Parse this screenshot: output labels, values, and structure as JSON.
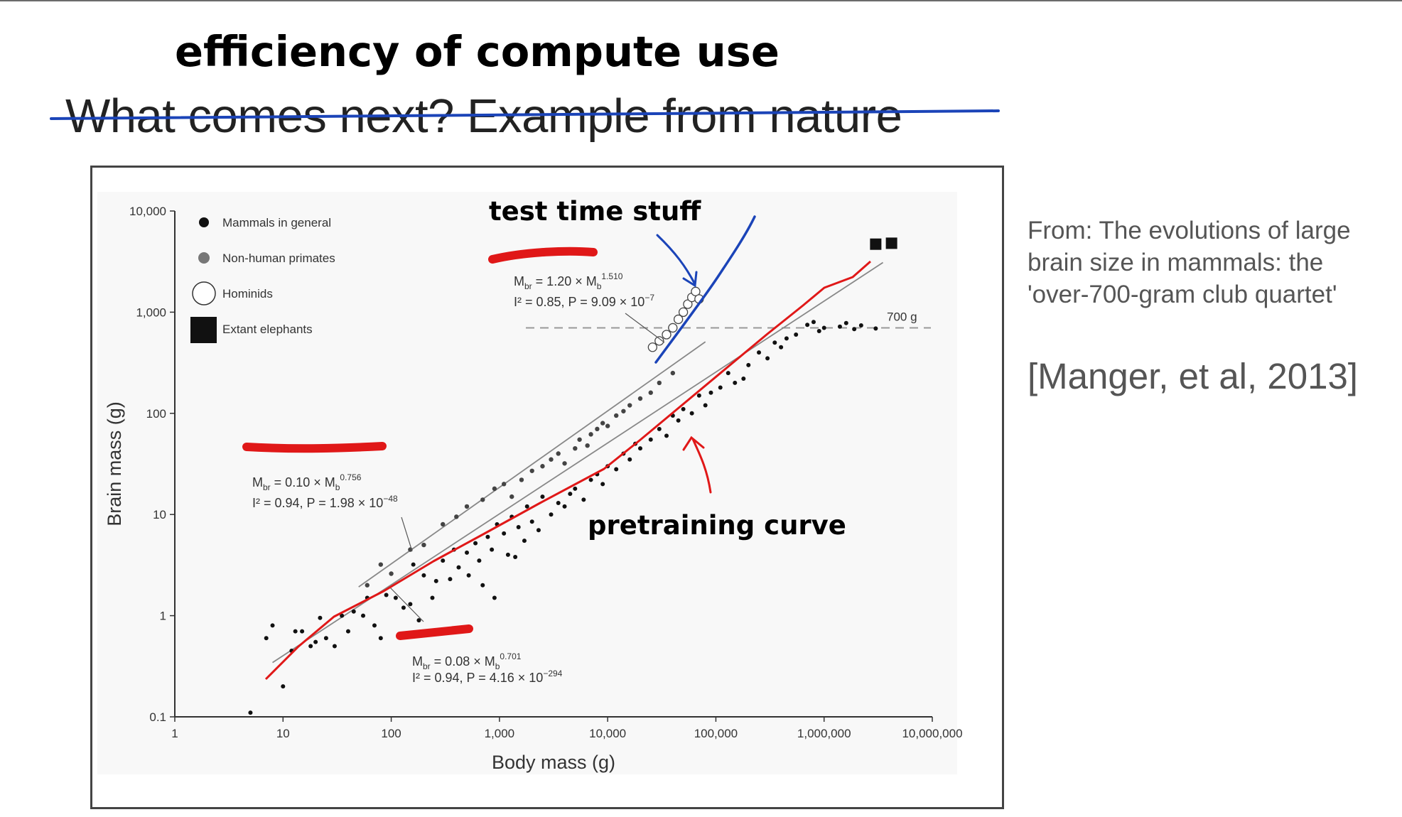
{
  "slide": {
    "title_handwritten": "efficiency of compute use",
    "title_original": "What comes next?  Example from nature",
    "source_text": "From: The evolutions of large brain size in mammals: the 'over-700-gram club quartet'",
    "citation": "[Manger, et al, 2013]"
  },
  "annotations": {
    "test_time": "test time stuff",
    "pretraining": "pretraining curve"
  },
  "colors": {
    "ink_blue": "#1b44b8",
    "ink_red": "#e01818",
    "points": "#111111",
    "fit_line": "#888888"
  },
  "chart_data": {
    "type": "scatter",
    "xlabel": "Body mass (g)",
    "ylabel": "Brain mass (g)",
    "xscale": "log",
    "yscale": "log",
    "xlim": [
      1,
      10000000
    ],
    "ylim": [
      0.1,
      10000
    ],
    "xticks": [
      "1",
      "10",
      "100",
      "1,000",
      "10,000",
      "100,000",
      "1,000,000",
      "10,000,000"
    ],
    "yticks": [
      "0.1",
      "1",
      "10",
      "100",
      "1,000",
      "10,000"
    ],
    "legend": {
      "placement": "top-left",
      "entries": [
        "Mammals in general",
        "Non-human primates",
        "Hominids",
        "Extant elephants"
      ]
    },
    "reference_line": {
      "y": 700,
      "label": "700 g"
    },
    "fits": [
      {
        "group": "Hominids",
        "eq": "M",
        "eq_sub": "br",
        "eq_mid": " = 1.20 × M",
        "eq_sub2": "b",
        "eq_exp": "1.510",
        "stat": "I² = 0.85, P = 9.09 × 10",
        "stat_exp": "−7",
        "a": 1.2,
        "b": 1.51,
        "x_range": [
          25000,
          80000
        ]
      },
      {
        "group": "Non-human primates",
        "eq": "M",
        "eq_sub": "br",
        "eq_mid": " = 0.10 × M",
        "eq_sub2": "b",
        "eq_exp": "0.756",
        "stat": "I² = 0.94, P = 1.98 × 10",
        "stat_exp": "−48",
        "a": 0.1,
        "b": 0.756,
        "x_range": [
          50,
          80000
        ]
      },
      {
        "group": "Mammals in general",
        "eq": "M",
        "eq_sub": "br",
        "eq_mid": " = 0.08 × M",
        "eq_sub2": "b",
        "eq_exp": "0.701",
        "stat": "I² = 0.94, P = 4.16 × 10",
        "stat_exp": "−294",
        "a": 0.08,
        "b": 0.701,
        "x_range": [
          8,
          3500000
        ]
      }
    ],
    "series": [
      {
        "name": "Mammals in general",
        "points": [
          [
            5,
            0.11
          ],
          [
            10,
            0.2
          ],
          [
            7,
            0.6
          ],
          [
            8,
            0.8
          ],
          [
            12,
            0.45
          ],
          [
            13,
            0.7
          ],
          [
            15,
            0.7
          ],
          [
            18,
            0.5
          ],
          [
            20,
            0.55
          ],
          [
            22,
            0.95
          ],
          [
            25,
            0.6
          ],
          [
            30,
            0.5
          ],
          [
            35,
            1.0
          ],
          [
            40,
            0.7
          ],
          [
            45,
            1.1
          ],
          [
            55,
            1.0
          ],
          [
            60,
            1.5
          ],
          [
            70,
            0.8
          ],
          [
            80,
            0.6
          ],
          [
            90,
            1.6
          ],
          [
            110,
            1.5
          ],
          [
            130,
            1.2
          ],
          [
            150,
            1.3
          ],
          [
            160,
            3.2
          ],
          [
            180,
            0.9
          ],
          [
            200,
            2.5
          ],
          [
            240,
            1.5
          ],
          [
            260,
            2.2
          ],
          [
            300,
            3.5
          ],
          [
            350,
            2.3
          ],
          [
            380,
            4.5
          ],
          [
            420,
            3.0
          ],
          [
            500,
            4.2
          ],
          [
            520,
            2.5
          ],
          [
            600,
            5.2
          ],
          [
            650,
            3.5
          ],
          [
            700,
            2.0
          ],
          [
            780,
            6.0
          ],
          [
            850,
            4.5
          ],
          [
            900,
            1.5
          ],
          [
            950,
            8.0
          ],
          [
            1100,
            6.5
          ],
          [
            1200,
            4.0
          ],
          [
            1300,
            9.5
          ],
          [
            1400,
            3.8
          ],
          [
            1500,
            7.5
          ],
          [
            1700,
            5.5
          ],
          [
            1800,
            12
          ],
          [
            2000,
            8.5
          ],
          [
            2300,
            7.0
          ],
          [
            2500,
            15
          ],
          [
            3000,
            10
          ],
          [
            3500,
            13
          ],
          [
            4000,
            12
          ],
          [
            4500,
            16
          ],
          [
            5000,
            18
          ],
          [
            6000,
            14
          ],
          [
            7000,
            22
          ],
          [
            8000,
            25
          ],
          [
            9000,
            20
          ],
          [
            10000,
            30
          ],
          [
            12000,
            28
          ],
          [
            14000,
            40
          ],
          [
            16000,
            35
          ],
          [
            18000,
            50
          ],
          [
            20000,
            45
          ],
          [
            25000,
            55
          ],
          [
            30000,
            70
          ],
          [
            35000,
            60
          ],
          [
            40000,
            95
          ],
          [
            45000,
            85
          ],
          [
            50000,
            110
          ],
          [
            60000,
            100
          ],
          [
            70000,
            150
          ],
          [
            80000,
            120
          ],
          [
            90000,
            160
          ],
          [
            110000,
            180
          ],
          [
            130000,
            250
          ],
          [
            150000,
            200
          ],
          [
            180000,
            220
          ],
          [
            200000,
            300
          ],
          [
            250000,
            400
          ],
          [
            300000,
            350
          ],
          [
            350000,
            500
          ],
          [
            400000,
            450
          ],
          [
            450000,
            550
          ],
          [
            550000,
            600
          ],
          [
            700000,
            750
          ],
          [
            800000,
            800
          ],
          [
            900000,
            650
          ],
          [
            1000000,
            700
          ],
          [
            1400000,
            720
          ],
          [
            1600000,
            780
          ],
          [
            1900000,
            680
          ],
          [
            2200000,
            740
          ],
          [
            3000000,
            690
          ]
        ]
      },
      {
        "name": "Non-human primates",
        "points": [
          [
            60,
            2.0
          ],
          [
            80,
            3.2
          ],
          [
            100,
            2.6
          ],
          [
            150,
            4.5
          ],
          [
            200,
            5.0
          ],
          [
            300,
            8.0
          ],
          [
            400,
            9.5
          ],
          [
            500,
            12
          ],
          [
            700,
            14
          ],
          [
            900,
            18
          ],
          [
            1100,
            20
          ],
          [
            1300,
            15
          ],
          [
            1600,
            22
          ],
          [
            2000,
            27
          ],
          [
            2500,
            30
          ],
          [
            3000,
            35
          ],
          [
            3500,
            40
          ],
          [
            4000,
            32
          ],
          [
            5000,
            45
          ],
          [
            5500,
            55
          ],
          [
            6500,
            48
          ],
          [
            7000,
            62
          ],
          [
            8000,
            70
          ],
          [
            9000,
            80
          ],
          [
            10000,
            75
          ],
          [
            12000,
            95
          ],
          [
            14000,
            105
          ],
          [
            16000,
            120
          ],
          [
            20000,
            140
          ],
          [
            25000,
            160
          ],
          [
            30000,
            200
          ],
          [
            40000,
            250
          ]
        ]
      },
      {
        "name": "Hominids",
        "points": [
          [
            26000,
            450
          ],
          [
            30000,
            520
          ],
          [
            35000,
            600
          ],
          [
            40000,
            700
          ],
          [
            45000,
            850
          ],
          [
            50000,
            1000
          ],
          [
            55000,
            1200
          ],
          [
            60000,
            1400
          ],
          [
            65000,
            1600
          ],
          [
            70000,
            1350
          ]
        ]
      },
      {
        "name": "Extant elephants",
        "points": [
          [
            3000000,
            4700
          ],
          [
            4200000,
            4800
          ]
        ]
      }
    ]
  }
}
